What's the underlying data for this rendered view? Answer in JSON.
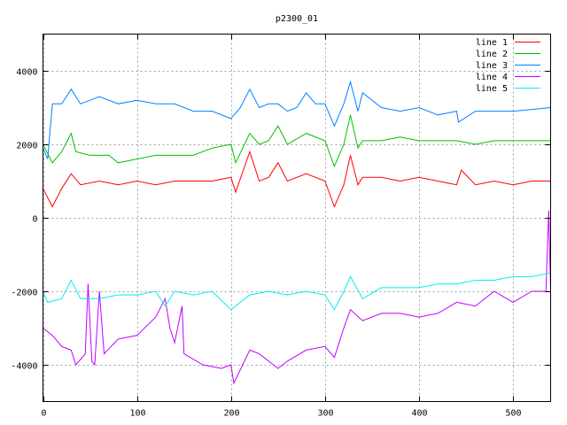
{
  "chart_data": {
    "type": "line",
    "title": "p2300_01",
    "xlabel": "",
    "ylabel": "",
    "xlim": [
      0,
      540
    ],
    "ylim": [
      -5000,
      5000
    ],
    "xticks": [
      0,
      100,
      200,
      300,
      400,
      500
    ],
    "yticks": [
      -4000,
      -2000,
      0,
      2000,
      4000
    ],
    "grid": true,
    "legend_position": "top-right",
    "series": [
      {
        "name": "line 1",
        "color": "#ff0000",
        "x": [
          0,
          10,
          20,
          30,
          40,
          60,
          80,
          100,
          120,
          140,
          160,
          180,
          200,
          205,
          220,
          230,
          240,
          250,
          260,
          280,
          300,
          310,
          320,
          327,
          335,
          340,
          360,
          380,
          400,
          420,
          440,
          445,
          460,
          480,
          500,
          520,
          540
        ],
        "y": [
          800,
          300,
          800,
          1200,
          900,
          1000,
          900,
          1000,
          900,
          1000,
          1000,
          1000,
          1100,
          700,
          1800,
          1000,
          1100,
          1500,
          1000,
          1200,
          1000,
          300,
          900,
          1700,
          900,
          1100,
          1100,
          1000,
          1100,
          1000,
          900,
          1300,
          900,
          1000,
          900,
          1000,
          1000
        ]
      },
      {
        "name": "line 2",
        "color": "#00c000",
        "x": [
          0,
          10,
          20,
          30,
          35,
          50,
          70,
          80,
          100,
          120,
          140,
          160,
          180,
          200,
          205,
          220,
          230,
          240,
          250,
          260,
          280,
          300,
          310,
          320,
          327,
          335,
          340,
          360,
          380,
          400,
          420,
          440,
          460,
          480,
          500,
          520,
          540
        ],
        "y": [
          2000,
          1500,
          1800,
          2300,
          1800,
          1700,
          1700,
          1500,
          1600,
          1700,
          1700,
          1700,
          1900,
          2000,
          1500,
          2300,
          2000,
          2100,
          2500,
          2000,
          2300,
          2100,
          1400,
          2000,
          2800,
          1900,
          2100,
          2100,
          2200,
          2100,
          2100,
          2100,
          2000,
          2100,
          2100,
          2100,
          2100
        ]
      },
      {
        "name": "line 3",
        "color": "#0080ff",
        "x": [
          0,
          5,
          10,
          20,
          30,
          40,
          60,
          80,
          100,
          120,
          140,
          160,
          180,
          200,
          210,
          220,
          230,
          240,
          250,
          260,
          270,
          280,
          290,
          300,
          310,
          320,
          327,
          335,
          340,
          360,
          380,
          400,
          420,
          440,
          442,
          460,
          480,
          500,
          520,
          540
        ],
        "y": [
          1900,
          1600,
          3100,
          3100,
          3500,
          3100,
          3300,
          3100,
          3200,
          3100,
          3100,
          2900,
          2900,
          2700,
          3000,
          3500,
          3000,
          3100,
          3100,
          2900,
          3000,
          3400,
          3100,
          3100,
          2500,
          3100,
          3700,
          2900,
          3400,
          3000,
          2900,
          3000,
          2800,
          2900,
          2600,
          2900,
          2900,
          2900,
          2950,
          3000
        ]
      },
      {
        "name": "line 4",
        "color": "#c000ff",
        "x": [
          0,
          10,
          20,
          30,
          35,
          45,
          48,
          52,
          55,
          60,
          65,
          80,
          100,
          120,
          130,
          135,
          140,
          148,
          150,
          170,
          190,
          200,
          203,
          220,
          230,
          250,
          260,
          280,
          300,
          310,
          320,
          327,
          340,
          360,
          380,
          400,
          420,
          440,
          460,
          480,
          500,
          520,
          535,
          538,
          540
        ],
        "y": [
          -3000,
          -3200,
          -3500,
          -3600,
          -4000,
          -3700,
          -1800,
          -3900,
          -4000,
          -2000,
          -3700,
          -3300,
          -3200,
          -2700,
          -2200,
          -3000,
          -3400,
          -2400,
          -3700,
          -4000,
          -4100,
          -4000,
          -4500,
          -3600,
          -3700,
          -4100,
          -3900,
          -3600,
          -3500,
          -3800,
          -3000,
          -2500,
          -2800,
          -2600,
          -2600,
          -2700,
          -2600,
          -2300,
          -2400,
          -2000,
          -2300,
          -2000,
          -2000,
          200,
          -2000
        ]
      },
      {
        "name": "line 5",
        "color": "#00eeee",
        "x": [
          0,
          5,
          20,
          30,
          40,
          60,
          80,
          100,
          120,
          130,
          140,
          160,
          180,
          200,
          220,
          240,
          260,
          280,
          300,
          310,
          320,
          327,
          340,
          360,
          380,
          400,
          420,
          440,
          460,
          480,
          500,
          520,
          540
        ],
        "y": [
          -2000,
          -2300,
          -2200,
          -1700,
          -2200,
          -2200,
          -2100,
          -2100,
          -2000,
          -2400,
          -2000,
          -2100,
          -2000,
          -2500,
          -2100,
          -2000,
          -2100,
          -2000,
          -2100,
          -2500,
          -2000,
          -1600,
          -2200,
          -1900,
          -1900,
          -1900,
          -1800,
          -1800,
          -1700,
          -1700,
          -1600,
          -1600,
          -1500
        ]
      }
    ]
  }
}
